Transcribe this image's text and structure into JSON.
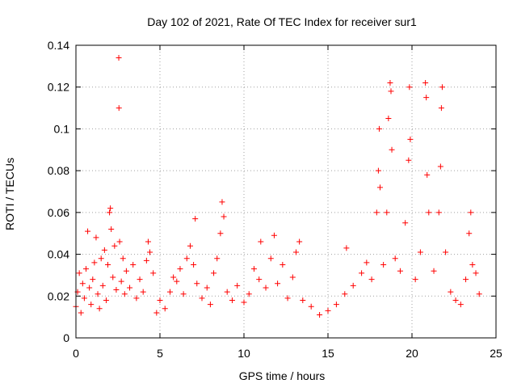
{
  "chart_data": {
    "type": "scatter",
    "title": "Day 102 of 2021, Rate Of TEC Index for receiver sur1",
    "xlabel": "GPS time / hours",
    "ylabel": "ROTI / TECUs",
    "xlim": [
      0,
      25
    ],
    "ylim": [
      0,
      0.14
    ],
    "xticks": [
      0,
      5,
      10,
      15,
      20,
      25
    ],
    "yticks": [
      0,
      0.02,
      0.04,
      0.06,
      0.08,
      0.1,
      0.12,
      0.14
    ],
    "xtick_labels": [
      "0",
      "5",
      "10",
      "15",
      "20",
      "25"
    ],
    "ytick_labels": [
      "0",
      "0.02",
      "0.04",
      "0.06",
      "0.08",
      "0.1",
      "0.12",
      "0.14"
    ],
    "grid": true,
    "marker": "+",
    "color": "#ff0000",
    "series": [
      {
        "points": [
          [
            0.0,
            0.015
          ],
          [
            0.1,
            0.022
          ],
          [
            0.2,
            0.031
          ],
          [
            0.3,
            0.012
          ],
          [
            0.4,
            0.026
          ],
          [
            0.5,
            0.019
          ],
          [
            0.6,
            0.033
          ],
          [
            0.7,
            0.051
          ],
          [
            0.8,
            0.024
          ],
          [
            0.9,
            0.016
          ],
          [
            1.0,
            0.028
          ],
          [
            1.1,
            0.036
          ],
          [
            1.2,
            0.048
          ],
          [
            1.3,
            0.021
          ],
          [
            1.4,
            0.014
          ],
          [
            1.5,
            0.038
          ],
          [
            1.6,
            0.025
          ],
          [
            1.7,
            0.042
          ],
          [
            1.8,
            0.018
          ],
          [
            1.9,
            0.035
          ],
          [
            2.0,
            0.06
          ],
          [
            2.05,
            0.062
          ],
          [
            2.1,
            0.052
          ],
          [
            2.2,
            0.029
          ],
          [
            2.3,
            0.044
          ],
          [
            2.4,
            0.023
          ],
          [
            2.55,
            0.134
          ],
          [
            2.56,
            0.11
          ],
          [
            2.6,
            0.046
          ],
          [
            2.7,
            0.027
          ],
          [
            2.8,
            0.038
          ],
          [
            2.9,
            0.021
          ],
          [
            3.0,
            0.032
          ],
          [
            3.2,
            0.024
          ],
          [
            3.4,
            0.035
          ],
          [
            3.6,
            0.019
          ],
          [
            3.8,
            0.028
          ],
          [
            4.0,
            0.022
          ],
          [
            4.2,
            0.037
          ],
          [
            4.3,
            0.046
          ],
          [
            4.4,
            0.041
          ],
          [
            4.6,
            0.031
          ],
          [
            4.8,
            0.012
          ],
          [
            5.0,
            0.018
          ],
          [
            5.3,
            0.014
          ],
          [
            5.6,
            0.022
          ],
          [
            5.8,
            0.029
          ],
          [
            6.0,
            0.027
          ],
          [
            6.2,
            0.033
          ],
          [
            6.4,
            0.021
          ],
          [
            6.6,
            0.038
          ],
          [
            6.8,
            0.044
          ],
          [
            7.0,
            0.035
          ],
          [
            7.1,
            0.057
          ],
          [
            7.2,
            0.026
          ],
          [
            7.5,
            0.019
          ],
          [
            7.8,
            0.024
          ],
          [
            8.0,
            0.016
          ],
          [
            8.2,
            0.031
          ],
          [
            8.4,
            0.038
          ],
          [
            8.6,
            0.05
          ],
          [
            8.7,
            0.065
          ],
          [
            8.8,
            0.058
          ],
          [
            9.0,
            0.022
          ],
          [
            9.3,
            0.018
          ],
          [
            9.6,
            0.025
          ],
          [
            10.0,
            0.017
          ],
          [
            10.3,
            0.021
          ],
          [
            10.6,
            0.033
          ],
          [
            10.9,
            0.028
          ],
          [
            11.0,
            0.046
          ],
          [
            11.3,
            0.024
          ],
          [
            11.6,
            0.038
          ],
          [
            11.8,
            0.049
          ],
          [
            12.0,
            0.026
          ],
          [
            12.3,
            0.035
          ],
          [
            12.6,
            0.019
          ],
          [
            12.9,
            0.029
          ],
          [
            13.1,
            0.041
          ],
          [
            13.3,
            0.046
          ],
          [
            13.5,
            0.018
          ],
          [
            14.0,
            0.015
          ],
          [
            14.5,
            0.011
          ],
          [
            15.0,
            0.013
          ],
          [
            15.5,
            0.016
          ],
          [
            16.0,
            0.021
          ],
          [
            16.1,
            0.043
          ],
          [
            16.5,
            0.025
          ],
          [
            17.0,
            0.031
          ],
          [
            17.3,
            0.036
          ],
          [
            17.6,
            0.028
          ],
          [
            17.9,
            0.06
          ],
          [
            18.0,
            0.08
          ],
          [
            18.05,
            0.1
          ],
          [
            18.1,
            0.072
          ],
          [
            18.3,
            0.035
          ],
          [
            18.5,
            0.06
          ],
          [
            18.6,
            0.105
          ],
          [
            18.7,
            0.122
          ],
          [
            18.75,
            0.118
          ],
          [
            18.8,
            0.09
          ],
          [
            19.0,
            0.038
          ],
          [
            19.3,
            0.032
          ],
          [
            19.6,
            0.055
          ],
          [
            19.8,
            0.085
          ],
          [
            19.85,
            0.12
          ],
          [
            19.9,
            0.095
          ],
          [
            20.2,
            0.028
          ],
          [
            20.5,
            0.041
          ],
          [
            20.8,
            0.122
          ],
          [
            20.85,
            0.115
          ],
          [
            20.9,
            0.078
          ],
          [
            21.0,
            0.06
          ],
          [
            21.3,
            0.032
          ],
          [
            21.6,
            0.06
          ],
          [
            21.7,
            0.082
          ],
          [
            21.75,
            0.11
          ],
          [
            21.8,
            0.12
          ],
          [
            22.0,
            0.041
          ],
          [
            22.3,
            0.022
          ],
          [
            22.6,
            0.018
          ],
          [
            22.9,
            0.016
          ],
          [
            23.2,
            0.028
          ],
          [
            23.4,
            0.05
          ],
          [
            23.5,
            0.06
          ],
          [
            23.6,
            0.035
          ],
          [
            23.8,
            0.031
          ],
          [
            24.0,
            0.021
          ]
        ]
      }
    ]
  }
}
